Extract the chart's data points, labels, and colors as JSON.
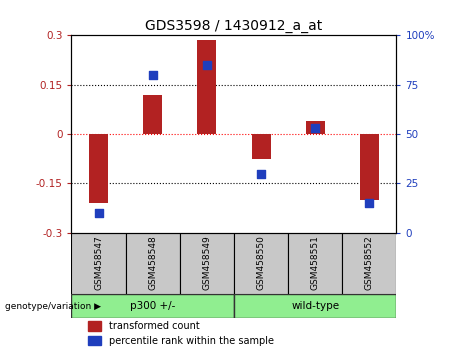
{
  "title": "GDS3598 / 1430912_a_at",
  "samples": [
    "GSM458547",
    "GSM458548",
    "GSM458549",
    "GSM458550",
    "GSM458551",
    "GSM458552"
  ],
  "transformed_counts": [
    -0.21,
    0.12,
    0.285,
    -0.075,
    0.04,
    -0.2
  ],
  "percentile_ranks": [
    10,
    80,
    85,
    30,
    53,
    15
  ],
  "group1_label": "p300 +/-",
  "group1_indices": [
    0,
    1,
    2
  ],
  "group2_label": "wild-type",
  "group2_indices": [
    3,
    4,
    5
  ],
  "group_color": "#90EE90",
  "bar_color": "#B22222",
  "dot_color": "#1F3EBD",
  "ylim_left": [
    -0.3,
    0.3
  ],
  "ylim_right": [
    0,
    100
  ],
  "yticks_left": [
    -0.3,
    -0.15,
    0,
    0.15,
    0.3
  ],
  "yticks_right": [
    0,
    25,
    50,
    75,
    100
  ],
  "ytick_labels_left": [
    "-0.3",
    "-0.15",
    "0",
    "0.15",
    "0.3"
  ],
  "ytick_labels_right": [
    "0",
    "25",
    "50",
    "75",
    "100%"
  ],
  "hlines": [
    -0.15,
    0,
    0.15
  ],
  "hline_colors": [
    "black",
    "red",
    "black"
  ],
  "hline_styles": [
    "dotted",
    "dotted",
    "dotted"
  ],
  "legend_red_label": "transformed count",
  "legend_blue_label": "percentile rank within the sample",
  "genotype_label": "genotype/variation",
  "bar_width": 0.35,
  "dot_size": 40,
  "sample_box_color": "#C8C8C8",
  "bg_color": "white"
}
